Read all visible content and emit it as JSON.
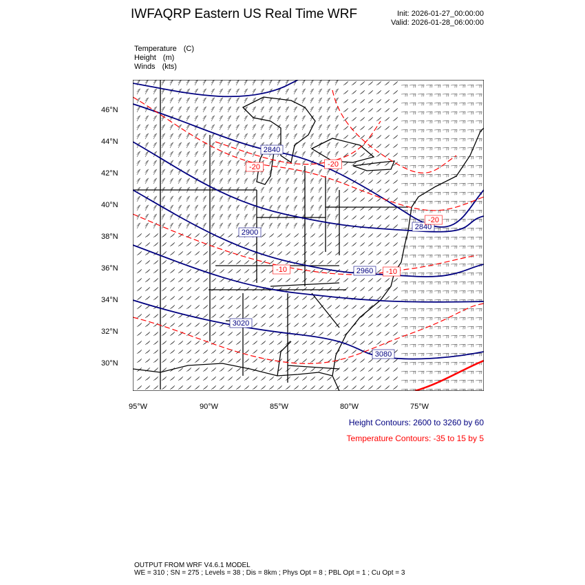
{
  "header": {
    "title": "IWFAQRP Eastern US Real Time WRF",
    "init": "Init: 2026-01-27_00:00:00",
    "valid": "Valid: 2026-01-28_06:00:00"
  },
  "fields": [
    {
      "name": "Temperature",
      "unit": "(C)"
    },
    {
      "name": "Height",
      "unit": "(m)"
    },
    {
      "name": "Winds",
      "unit": "(kts)"
    }
  ],
  "map": {
    "lon_ticks": [
      "95°W",
      "90°W",
      "85°W",
      "80°W",
      "75°W"
    ],
    "lat_ticks": [
      "46°N",
      "44°N",
      "42°N",
      "40°N",
      "38°N",
      "36°N",
      "34°N",
      "32°N",
      "30°N"
    ],
    "height_labels": [
      "2840",
      "2900",
      "2960",
      "2840",
      "3020",
      "3080"
    ],
    "temp_labels": [
      "-20",
      "-20",
      "-10",
      "-10",
      "-20"
    ],
    "colors": {
      "height": "#000080",
      "temperature": "#ff0000",
      "boundaries": "#000000",
      "barbs": "#000000"
    }
  },
  "legend": {
    "height": "Height Contours: 2600 to 3260 by 60",
    "temperature": "Temperature Contours: -35 to 15 by 5"
  },
  "footer": {
    "line1": "OUTPUT FROM WRF V4.6.1 MODEL",
    "line2": "WE = 310 ; SN = 275 ; Levels = 38 ; Dis = 8km ; Phys Opt = 8 ; PBL Opt = 1 ; Cu Opt = 3"
  }
}
